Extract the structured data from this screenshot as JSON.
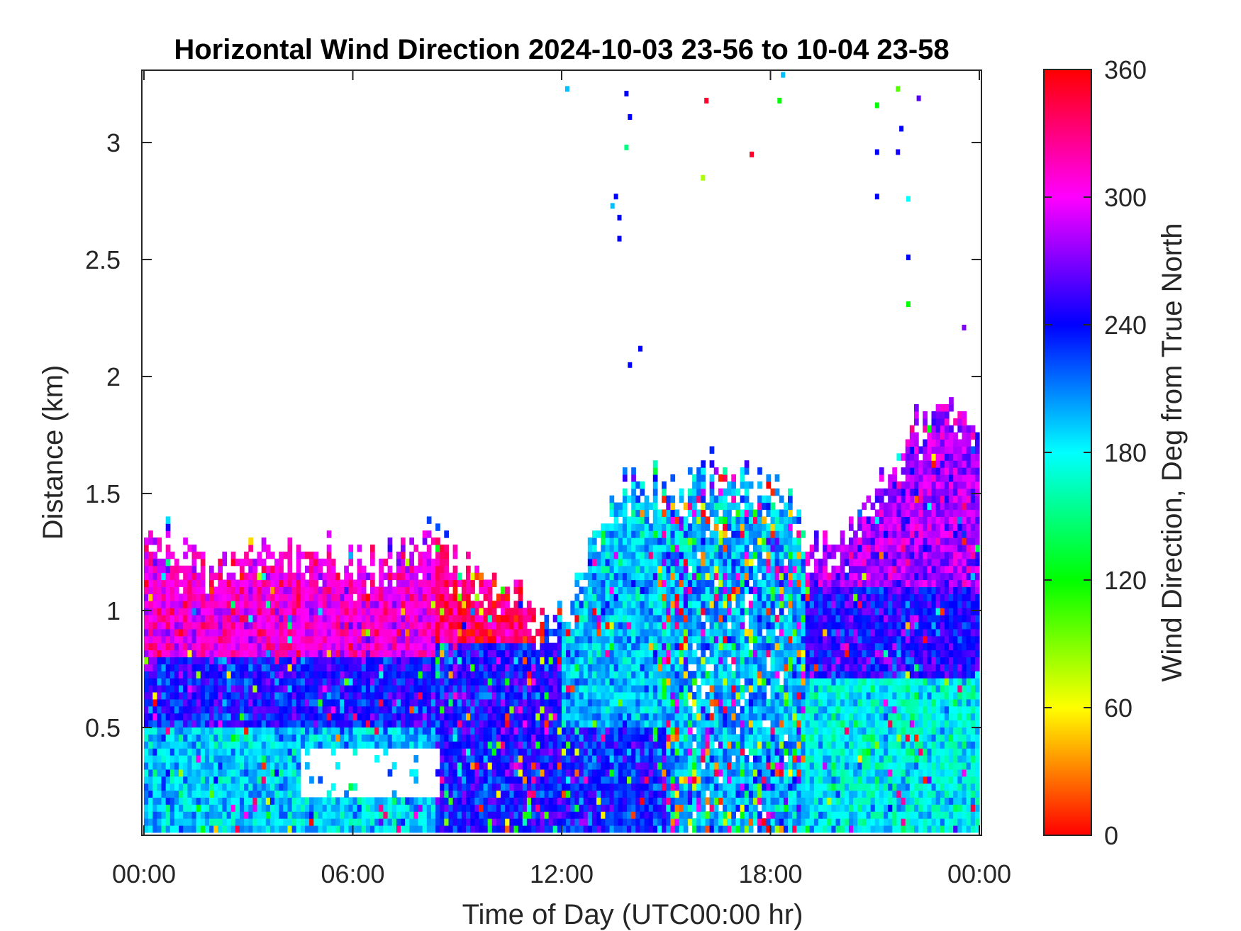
{
  "chart_data": {
    "type": "heatmap",
    "title": "Horizontal Wind Direction 2024-10-03 23-56 to 10-04 23-58",
    "xlabel": "Time of Day (UTC00:00 hr)",
    "ylabel": "Distance (km)",
    "x_ticks": [
      "00:00",
      "06:00",
      "12:00",
      "18:00",
      "00:00"
    ],
    "x_tick_values": [
      0,
      6,
      12,
      18,
      24
    ],
    "xlim": [
      0,
      24
    ],
    "y_ticks": [
      "0.5",
      "1",
      "1.5",
      "2",
      "2.5",
      "3"
    ],
    "y_tick_values": [
      0.5,
      1,
      1.5,
      2,
      2.5,
      3
    ],
    "ylim": [
      0.05,
      3.3
    ],
    "colorbar": {
      "label": "Wind Direction, Deg from True North",
      "ticks": [
        "0",
        "60",
        "120",
        "180",
        "240",
        "300",
        "360"
      ],
      "tick_values": [
        0,
        60,
        120,
        180,
        240,
        300,
        360
      ],
      "range": [
        0,
        360
      ],
      "colormap": "hsv"
    },
    "data_top_profile": {
      "hours": [
        0,
        1,
        2,
        3,
        4,
        5,
        6,
        7,
        8,
        8.4,
        9,
        10,
        11,
        11.5,
        12,
        12.5,
        13,
        13.5,
        14,
        14.5,
        15,
        16,
        17,
        18,
        19,
        20,
        21,
        22,
        23,
        24
      ],
      "top_km": [
        1.33,
        1.28,
        1.22,
        1.25,
        1.3,
        1.26,
        1.22,
        1.2,
        1.3,
        1.32,
        1.2,
        1.12,
        1.05,
        0.98,
        1.0,
        1.2,
        1.38,
        1.48,
        1.55,
        1.55,
        1.55,
        1.58,
        1.6,
        1.55,
        1.3,
        1.28,
        1.5,
        1.72,
        1.95,
        1.72
      ]
    },
    "direction_bands": [
      {
        "hours": [
          0,
          8.3
        ],
        "km": [
          0.05,
          0.5
        ],
        "deg": 190
      },
      {
        "hours": [
          0,
          8.3
        ],
        "km": [
          0.5,
          0.8
        ],
        "deg": 240
      },
      {
        "hours": [
          0,
          8.3
        ],
        "km": [
          0.8,
          1.33
        ],
        "deg": 305
      },
      {
        "hours": [
          8.3,
          12
        ],
        "km": [
          0.05,
          0.85
        ],
        "deg": 242
      },
      {
        "hours": [
          8.3,
          11.5
        ],
        "km": [
          0.85,
          1.3
        ],
        "deg": 335
      },
      {
        "hours": [
          12,
          15
        ],
        "km": [
          0.05,
          0.5
        ],
        "deg": 235
      },
      {
        "hours": [
          12,
          15
        ],
        "km": [
          0.5,
          1.55
        ],
        "deg": 195
      },
      {
        "hours": [
          15,
          19
        ],
        "km": [
          0.05,
          1.6
        ],
        "deg": 200
      },
      {
        "hours": [
          19,
          24
        ],
        "km": [
          0.05,
          0.7
        ],
        "deg": 180
      },
      {
        "hours": [
          19,
          24
        ],
        "km": [
          0.7,
          1.1
        ],
        "deg": 245
      },
      {
        "hours": [
          19,
          24
        ],
        "km": [
          1.1,
          2.0
        ],
        "deg": 280
      }
    ],
    "missing_regions": [
      {
        "hours": [
          4.4,
          8.4
        ],
        "km": [
          0.18,
          0.4
        ]
      }
    ],
    "sparse_upper_points": [
      {
        "hour": 12.1,
        "km": 3.22,
        "deg": 195
      },
      {
        "hour": 13.8,
        "km": 3.2,
        "deg": 240
      },
      {
        "hour": 13.9,
        "km": 3.1,
        "deg": 240
      },
      {
        "hour": 13.8,
        "km": 2.97,
        "deg": 150
      },
      {
        "hour": 13.5,
        "km": 2.76,
        "deg": 240
      },
      {
        "hour": 13.4,
        "km": 2.72,
        "deg": 195
      },
      {
        "hour": 13.6,
        "km": 2.67,
        "deg": 240
      },
      {
        "hour": 13.6,
        "km": 2.58,
        "deg": 240
      },
      {
        "hour": 14.2,
        "km": 2.11,
        "deg": 240
      },
      {
        "hour": 13.9,
        "km": 2.04,
        "deg": 240
      },
      {
        "hour": 16.1,
        "km": 3.17,
        "deg": 350
      },
      {
        "hour": 17.4,
        "km": 2.94,
        "deg": 350
      },
      {
        "hour": 16.0,
        "km": 2.84,
        "deg": 80
      },
      {
        "hour": 18.2,
        "km": 3.17,
        "deg": 120
      },
      {
        "hour": 18.3,
        "km": 3.28,
        "deg": 195
      },
      {
        "hour": 21.0,
        "km": 3.15,
        "deg": 120
      },
      {
        "hour": 21.6,
        "km": 3.22,
        "deg": 100
      },
      {
        "hour": 21.0,
        "km": 2.95,
        "deg": 240
      },
      {
        "hour": 21.0,
        "km": 2.76,
        "deg": 240
      },
      {
        "hour": 21.6,
        "km": 2.95,
        "deg": 245
      },
      {
        "hour": 21.7,
        "km": 3.05,
        "deg": 240
      },
      {
        "hour": 22.2,
        "km": 3.18,
        "deg": 260
      },
      {
        "hour": 21.9,
        "km": 2.75,
        "deg": 180
      },
      {
        "hour": 21.9,
        "km": 2.5,
        "deg": 240
      },
      {
        "hour": 21.9,
        "km": 2.3,
        "deg": 120
      },
      {
        "hour": 23.5,
        "km": 2.2,
        "deg": 270
      }
    ]
  }
}
